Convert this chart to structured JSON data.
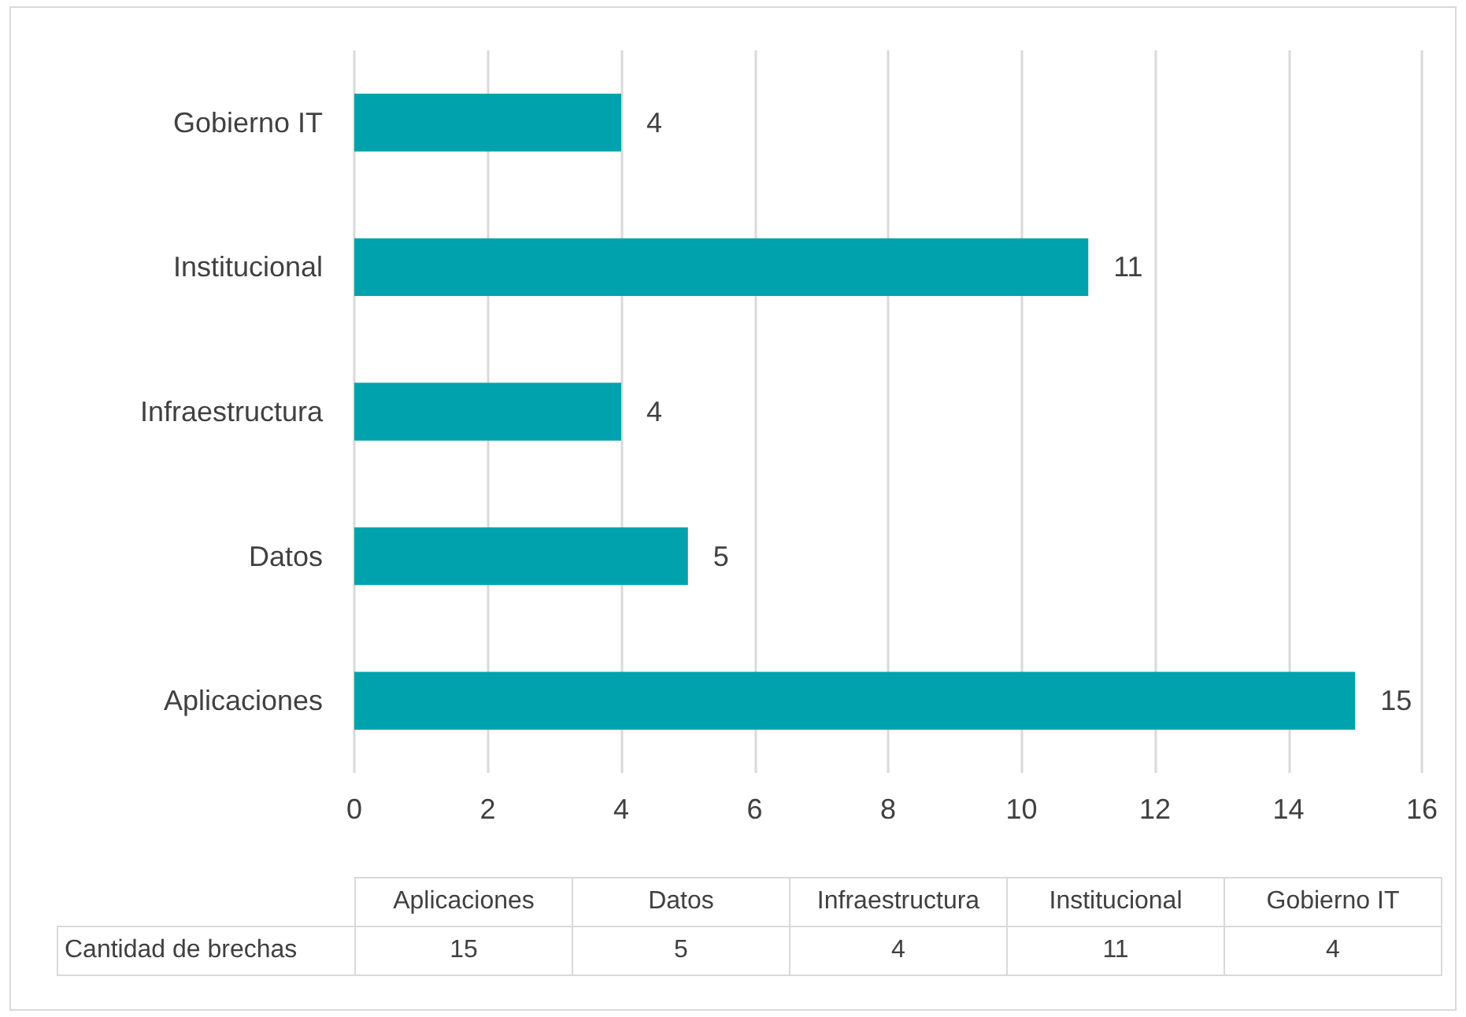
{
  "chart_data": [
    {
      "type": "bar",
      "orientation": "horizontal",
      "categories": [
        "Gobierno IT",
        "Institucional",
        "Infraestructura",
        "Datos",
        "Aplicaciones"
      ],
      "series": [
        {
          "color": "#00a3ad",
          "values": [
            4,
            11,
            4,
            5,
            15
          ]
        }
      ],
      "xlim": [
        0,
        16
      ],
      "xticks": [
        0,
        2,
        4,
        6,
        8,
        10,
        12,
        14,
        16
      ],
      "grid": "x",
      "data_labels": true
    },
    {
      "type": "other",
      "categories": [
        "Aplicaciones",
        "Datos",
        "Infraestructura",
        "Institucional",
        "Gobierno IT"
      ],
      "series": [
        {
          "name": "Cantidad de brechas",
          "values": [
            15,
            5,
            4,
            11,
            4
          ]
        }
      ],
      "data_labels": true
    }
  ]
}
